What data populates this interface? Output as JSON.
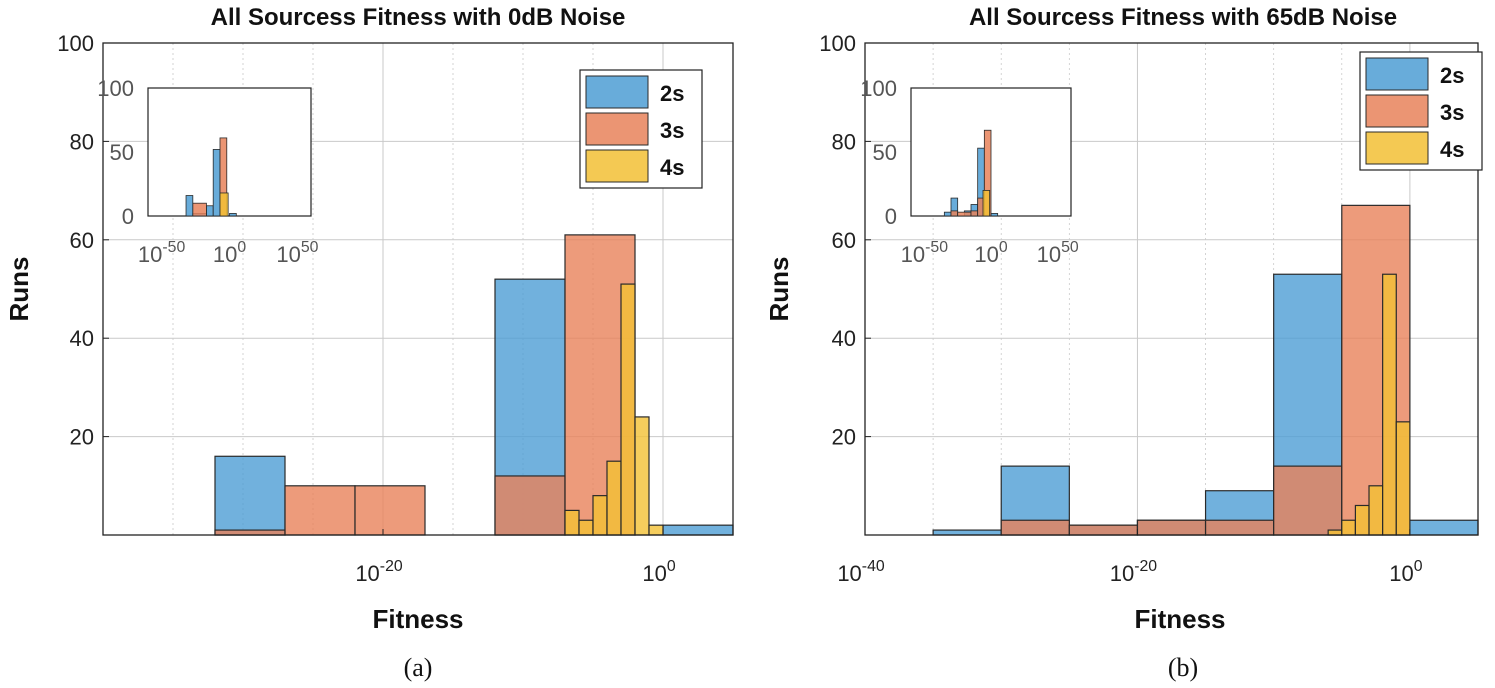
{
  "colors": {
    "2s": "#4d9ed4",
    "3s": "#e8825a",
    "4s": "#f2c035",
    "overlap": "#a6766a",
    "grid": "#c9c9c9",
    "axis": "#222222"
  },
  "legend_labels": [
    "2s",
    "3s",
    "4s"
  ],
  "chart_data": [
    {
      "type": "bar",
      "panel_caption": "(a)",
      "title": "All Sourcess Fitness with 0dB Noise",
      "xlabel": "Fitness",
      "ylabel": "Runs",
      "x_scale": "log10",
      "xlim_exp": [
        -40,
        5
      ],
      "ylim": [
        0,
        100
      ],
      "yticks": [
        20,
        40,
        60,
        80,
        100
      ],
      "ytick_labels": [
        "20",
        "40",
        "60",
        "80",
        "100"
      ],
      "xticks_exp": [
        -20,
        0
      ],
      "xtick_labels": [
        {
          "base": "10",
          "exp": "-20"
        },
        {
          "base": "10",
          "exp": "0"
        }
      ],
      "grid": true,
      "legend_position": "top-right",
      "series": [
        {
          "name": "2s",
          "bins": [
            [
              -32,
              -27,
              16
            ],
            [
              -12,
              -7,
              52
            ],
            [
              0,
              5,
              2
            ]
          ]
        },
        {
          "name": "3s",
          "bins": [
            [
              -32,
              -27,
              1
            ],
            [
              -27,
              -22,
              10
            ],
            [
              -22,
              -17,
              10
            ],
            [
              -12,
              -7,
              12
            ],
            [
              -7,
              -2,
              61
            ]
          ]
        },
        {
          "name": "4s",
          "bins": [
            [
              -7,
              -6,
              5
            ],
            [
              -6,
              -5,
              3
            ],
            [
              -5,
              -4,
              8
            ],
            [
              -4,
              -3,
              15
            ],
            [
              -3,
              -2,
              51
            ],
            [
              -2,
              -1,
              24
            ],
            [
              -1,
              0,
              2
            ]
          ]
        }
      ],
      "inset": {
        "xlim_exp": [
          -60,
          60
        ],
        "ylim": [
          0,
          100
        ],
        "ytick_labels": [
          "0",
          "50",
          "100"
        ],
        "xtick_labels": [
          {
            "base": "10",
            "exp": "-50"
          },
          {
            "base": "10",
            "exp": "0"
          },
          {
            "base": "10",
            "exp": "50"
          }
        ],
        "series": [
          {
            "name": "2s",
            "bins": [
              [
                -32,
                -27,
                16
              ],
              [
                -27,
                -17,
                2
              ],
              [
                -17,
                -12,
                8
              ],
              [
                -12,
                -7,
                52
              ],
              [
                0,
                5,
                2
              ]
            ]
          },
          {
            "name": "3s",
            "bins": [
              [
                -27,
                -17,
                10
              ],
              [
                -7,
                -2,
                61
              ]
            ]
          },
          {
            "name": "4s",
            "bins": [
              [
                -7,
                -1,
                18
              ]
            ]
          }
        ]
      }
    },
    {
      "type": "bar",
      "panel_caption": "(b)",
      "title": "All Sourcess Fitness with 65dB Noise",
      "xlabel": "Fitness",
      "ylabel": "Runs",
      "x_scale": "log10",
      "xlim_exp": [
        -40,
        5
      ],
      "ylim": [
        0,
        100
      ],
      "yticks": [
        20,
        40,
        60,
        80,
        100
      ],
      "ytick_labels": [
        "20",
        "40",
        "60",
        "80",
        "100"
      ],
      "xticks_exp": [
        -40,
        -20,
        0
      ],
      "xtick_labels": [
        {
          "base": "10",
          "exp": "-40"
        },
        {
          "base": "10",
          "exp": "-20"
        },
        {
          "base": "10",
          "exp": "0"
        }
      ],
      "grid": true,
      "legend_position": "top-right",
      "series": [
        {
          "name": "2s",
          "bins": [
            [
              -35,
              -30,
              1
            ],
            [
              -30,
              -25,
              14
            ],
            [
              -25,
              -20,
              2
            ],
            [
              -20,
              -15,
              3
            ],
            [
              -15,
              -10,
              9
            ],
            [
              -10,
              -5,
              53
            ],
            [
              0,
              5,
              3
            ]
          ]
        },
        {
          "name": "3s",
          "bins": [
            [
              -30,
              -25,
              3
            ],
            [
              -25,
              -20,
              2
            ],
            [
              -20,
              -15,
              3
            ],
            [
              -15,
              -10,
              3
            ],
            [
              -10,
              -5,
              14
            ],
            [
              -5,
              0,
              67
            ]
          ]
        },
        {
          "name": "4s",
          "bins": [
            [
              -6,
              -5,
              1
            ],
            [
              -5,
              -4,
              3
            ],
            [
              -4,
              -3,
              6
            ],
            [
              -3,
              -2,
              10
            ],
            [
              -2,
              -1,
              53
            ],
            [
              -1,
              0,
              23
            ]
          ]
        }
      ],
      "inset": {
        "xlim_exp": [
          -60,
          60
        ],
        "ylim": [
          0,
          100
        ],
        "ytick_labels": [
          "0",
          "50",
          "100"
        ],
        "xtick_labels": [
          {
            "base": "10",
            "exp": "-50"
          },
          {
            "base": "10",
            "exp": "0"
          },
          {
            "base": "10",
            "exp": "50"
          }
        ],
        "series": [
          {
            "name": "2s",
            "bins": [
              [
                -35,
                -30,
                3
              ],
              [
                -30,
                -25,
                14
              ],
              [
                -20,
                -15,
                4
              ],
              [
                -15,
                -10,
                9
              ],
              [
                -10,
                -5,
                53
              ],
              [
                0,
                5,
                2
              ]
            ]
          },
          {
            "name": "3s",
            "bins": [
              [
                -30,
                -25,
                4
              ],
              [
                -25,
                -15,
                3
              ],
              [
                -15,
                -10,
                4
              ],
              [
                -10,
                -5,
                14
              ],
              [
                -5,
                0,
                67
              ]
            ]
          },
          {
            "name": "4s",
            "bins": [
              [
                -6,
                -1,
                20
              ]
            ]
          }
        ]
      }
    }
  ]
}
